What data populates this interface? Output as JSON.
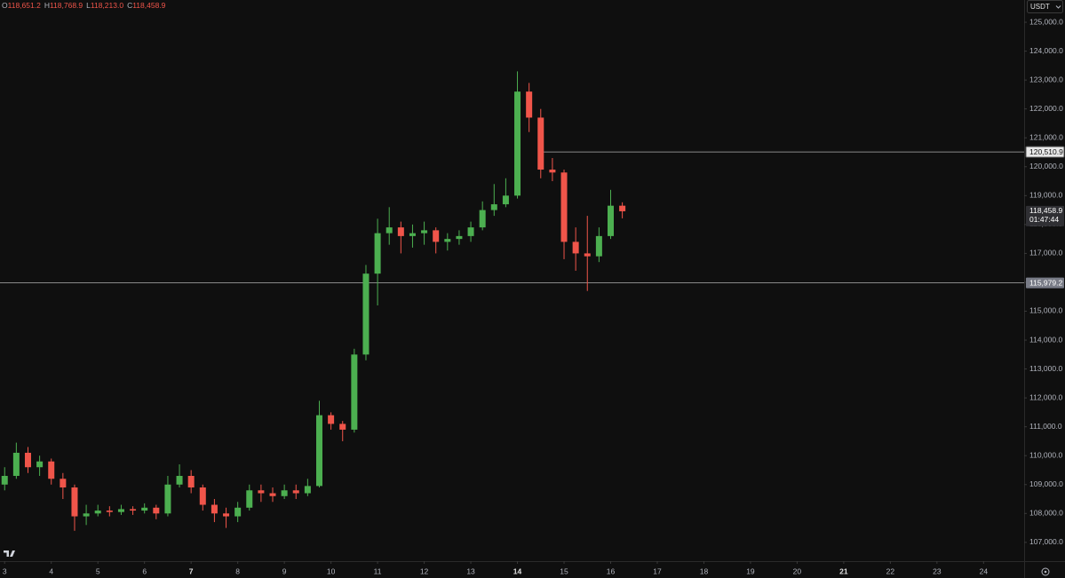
{
  "chart_data": {
    "type": "candlestick",
    "ohlc_legend": [
      {
        "key": "O",
        "value": "118,651.2"
      },
      {
        "key": "H",
        "value": "118,768.9"
      },
      {
        "key": "L",
        "value": "118,213.0"
      },
      {
        "key": "C",
        "value": "118,458.9"
      }
    ],
    "currency": "USDT",
    "x": [
      3,
      3.25,
      3.5,
      3.75,
      4,
      4.25,
      4.5,
      4.75,
      5,
      5.25,
      5.5,
      5.75,
      6,
      6.25,
      6.5,
      6.75,
      7,
      7.25,
      7.5,
      7.75,
      8,
      8.25,
      8.5,
      8.75,
      9,
      9.25,
      9.5,
      9.75,
      10,
      10.25,
      10.5,
      10.75,
      11,
      11.25,
      11.5,
      11.75,
      12,
      12.25,
      12.5,
      12.75,
      13,
      13.25,
      13.5,
      13.75,
      14,
      14.25,
      14.5,
      14.75,
      15,
      15.25,
      15.5,
      15.75,
      16,
      16.25
    ],
    "open": [
      109000,
      109300,
      110100,
      109600,
      109800,
      109200,
      108900,
      107900,
      108000,
      108100,
      108050,
      108150,
      108100,
      108200,
      108000,
      109000,
      109300,
      108900,
      108300,
      108000,
      107900,
      108200,
      108800,
      108700,
      108600,
      108800,
      108700,
      108950,
      111400,
      111100,
      110900,
      113500,
      116300,
      117700,
      117900,
      117600,
      117700,
      117800,
      117400,
      117500,
      117600,
      117900,
      118500,
      118700,
      119000,
      122600,
      121700,
      119900,
      119800,
      117400,
      117000,
      116900,
      117600,
      118651.2
    ],
    "high": [
      109600,
      110450,
      110300,
      110000,
      109900,
      109400,
      109000,
      108300,
      108300,
      108250,
      108300,
      108250,
      108350,
      108300,
      109300,
      109700,
      109500,
      109000,
      108500,
      108200,
      108400,
      109000,
      109000,
      108900,
      109000,
      109000,
      109200,
      111900,
      111500,
      111200,
      113700,
      116600,
      118200,
      118600,
      118100,
      118000,
      118100,
      117900,
      117700,
      117800,
      118100,
      118800,
      119400,
      119600,
      123300,
      122900,
      122000,
      120300,
      119900,
      117900,
      118300,
      117900,
      119200,
      118768.9
    ],
    "low": [
      108800,
      109200,
      109400,
      109300,
      109000,
      108500,
      107400,
      107600,
      107900,
      107900,
      107950,
      107950,
      108000,
      107800,
      107900,
      108900,
      108700,
      108100,
      107700,
      107500,
      107700,
      108100,
      108400,
      108400,
      108500,
      108500,
      108600,
      108900,
      110900,
      110500,
      110800,
      113300,
      115200,
      117300,
      117000,
      117200,
      117300,
      117000,
      117100,
      117300,
      117400,
      117800,
      118300,
      118600,
      118900,
      121200,
      119600,
      119500,
      116800,
      116400,
      115700,
      116700,
      117500,
      118213
    ],
    "close": [
      109300,
      110100,
      109600,
      109800,
      109200,
      108900,
      107900,
      108000,
      108100,
      108050,
      108150,
      108100,
      108200,
      108000,
      109000,
      109300,
      108900,
      108300,
      108000,
      107900,
      108200,
      108800,
      108700,
      108600,
      108800,
      108700,
      108950,
      111400,
      111100,
      110900,
      113500,
      116300,
      117700,
      117900,
      117600,
      117700,
      117800,
      117400,
      117500,
      117600,
      117900,
      118500,
      118700,
      119000,
      122600,
      121700,
      119900,
      119800,
      117400,
      117000,
      116900,
      117600,
      118651.2,
      118458.9
    ],
    "up_color": "#4caf50",
    "down_color": "#f0554a",
    "xlim": [
      2.9,
      24.87
    ],
    "xticks": [
      3,
      4,
      5,
      6,
      7,
      8,
      9,
      10,
      11,
      12,
      13,
      14,
      15,
      16,
      17,
      18,
      19,
      20,
      21,
      22,
      23,
      24
    ],
    "bold_xticks": [
      7,
      14,
      21
    ],
    "ylim": [
      106350,
      125770
    ],
    "yticks": [
      {
        "value": 107000,
        "label": "107,000.0"
      },
      {
        "value": 108000,
        "label": "108,000.0"
      },
      {
        "value": 109000,
        "label": "109,000.0"
      },
      {
        "value": 110000,
        "label": "110,000.0"
      },
      {
        "value": 111000,
        "label": "111,000.0"
      },
      {
        "value": 112000,
        "label": "112,000.0"
      },
      {
        "value": 113000,
        "label": "113,000.0"
      },
      {
        "value": 114000,
        "label": "114,000.0"
      },
      {
        "value": 115000,
        "label": "115,000.0"
      },
      {
        "value": 116000,
        "label": "116,000.0"
      },
      {
        "value": 117000,
        "label": "117,000.0"
      },
      {
        "value": 118000,
        "label": "118,000.0"
      },
      {
        "value": 119000,
        "label": "119,000.0"
      },
      {
        "value": 120000,
        "label": "120,000.0"
      },
      {
        "value": 121000,
        "label": "121,000.0"
      },
      {
        "value": 122000,
        "label": "122,000.0"
      },
      {
        "value": 123000,
        "label": "123,000.0"
      },
      {
        "value": 124000,
        "label": "124,000.0"
      },
      {
        "value": 125000,
        "label": "125,000.0"
      }
    ],
    "price_lines": [
      {
        "value": 120510.9,
        "label": "120,510.9",
        "x_start": 14.5,
        "style": "light"
      },
      {
        "value": 115979.2,
        "label": "115,979.2",
        "style": "gray"
      }
    ],
    "last_price": {
      "label": "118,458.9",
      "countdown": "01:47:44"
    }
  }
}
